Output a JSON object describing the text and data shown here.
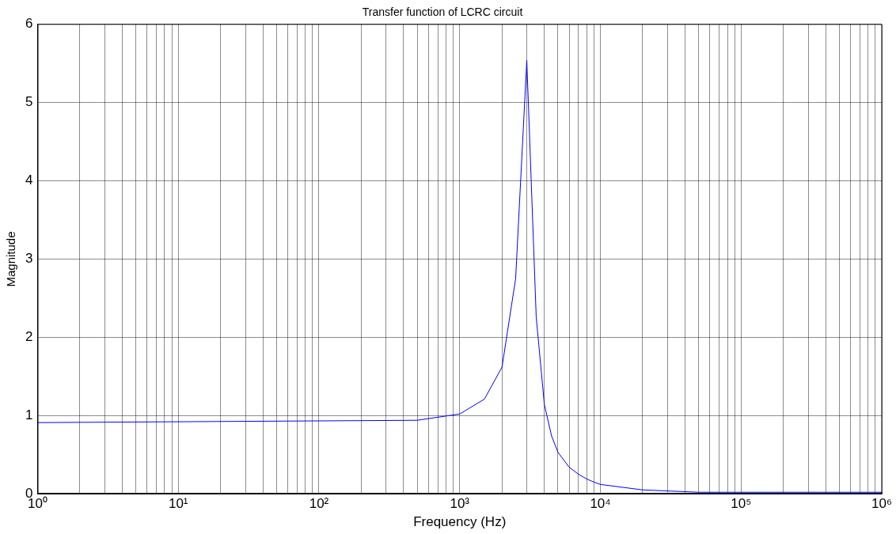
{
  "chart_data": {
    "type": "line",
    "title": "Transfer function of LCRC circuit",
    "xlabel": "Frequency (Hz)",
    "ylabel": "Magnitude",
    "log": "x",
    "grid": true,
    "marker": "none",
    "line_style": "solid",
    "x": [
      1,
      500,
      1000,
      1500,
      2000,
      2500,
      3000,
      3500,
      4000,
      4500,
      5000,
      6000,
      7000,
      8000,
      9000,
      10000,
      20000,
      50000,
      1000000
    ],
    "series": [
      {
        "color": "#0000ff",
        "values": [
          0.91,
          0.94,
          1.02,
          1.21,
          1.62,
          2.75,
          5.54,
          2.26,
          1.14,
          0.74,
          0.53,
          0.34,
          0.25,
          0.19,
          0.15,
          0.12,
          0.05,
          0.02,
          0.02
        ]
      }
    ],
    "xlim": [
      1,
      1000000
    ],
    "ylim": [
      0,
      6
    ],
    "yticks": [
      0,
      1,
      2,
      3,
      4,
      5,
      6
    ],
    "xticks": [
      {
        "value": 1,
        "label": "10⁰"
      },
      {
        "value": 2,
        "label": null
      },
      {
        "value": 3,
        "label": null
      },
      {
        "value": 4,
        "label": null
      },
      {
        "value": 5,
        "label": null
      },
      {
        "value": 6,
        "label": null
      },
      {
        "value": 7,
        "label": null
      },
      {
        "value": 8,
        "label": null
      },
      {
        "value": 9,
        "label": null
      },
      {
        "value": 10,
        "label": "10¹"
      },
      {
        "value": 20,
        "label": null
      },
      {
        "value": 30,
        "label": null
      },
      {
        "value": 40,
        "label": null
      },
      {
        "value": 50,
        "label": null
      },
      {
        "value": 60,
        "label": null
      },
      {
        "value": 70,
        "label": null
      },
      {
        "value": 80,
        "label": null
      },
      {
        "value": 90,
        "label": null
      },
      {
        "value": 100,
        "label": "10²"
      },
      {
        "value": 200,
        "label": null
      },
      {
        "value": 300,
        "label": null
      },
      {
        "value": 400,
        "label": null
      },
      {
        "value": 500,
        "label": null
      },
      {
        "value": 600,
        "label": null
      },
      {
        "value": 700,
        "label": null
      },
      {
        "value": 800,
        "label": null
      },
      {
        "value": 900,
        "label": null
      },
      {
        "value": 1000,
        "label": "10³"
      },
      {
        "value": 2000,
        "label": null
      },
      {
        "value": 3000,
        "label": null
      },
      {
        "value": 4000,
        "label": null
      },
      {
        "value": 5000,
        "label": null
      },
      {
        "value": 6000,
        "label": null
      },
      {
        "value": 7000,
        "label": null
      },
      {
        "value": 8000,
        "label": null
      },
      {
        "value": 9000,
        "label": null
      },
      {
        "value": 10000,
        "label": "10⁴"
      },
      {
        "value": 20000,
        "label": null
      },
      {
        "value": 30000,
        "label": null
      },
      {
        "value": 40000,
        "label": null
      },
      {
        "value": 50000,
        "label": null
      },
      {
        "value": 60000,
        "label": null
      },
      {
        "value": 70000,
        "label": null
      },
      {
        "value": 80000,
        "label": null
      },
      {
        "value": 90000,
        "label": null
      },
      {
        "value": 100000,
        "label": "10⁵"
      },
      {
        "value": 200000,
        "label": null
      },
      {
        "value": 300000,
        "label": null
      },
      {
        "value": 400000,
        "label": null
      },
      {
        "value": 500000,
        "label": null
      },
      {
        "value": 600000,
        "label": null
      },
      {
        "value": 700000,
        "label": null
      },
      {
        "value": 800000,
        "label": null
      },
      {
        "value": 900000,
        "label": null
      },
      {
        "value": 1000000,
        "label": "10⁶"
      }
    ]
  }
}
